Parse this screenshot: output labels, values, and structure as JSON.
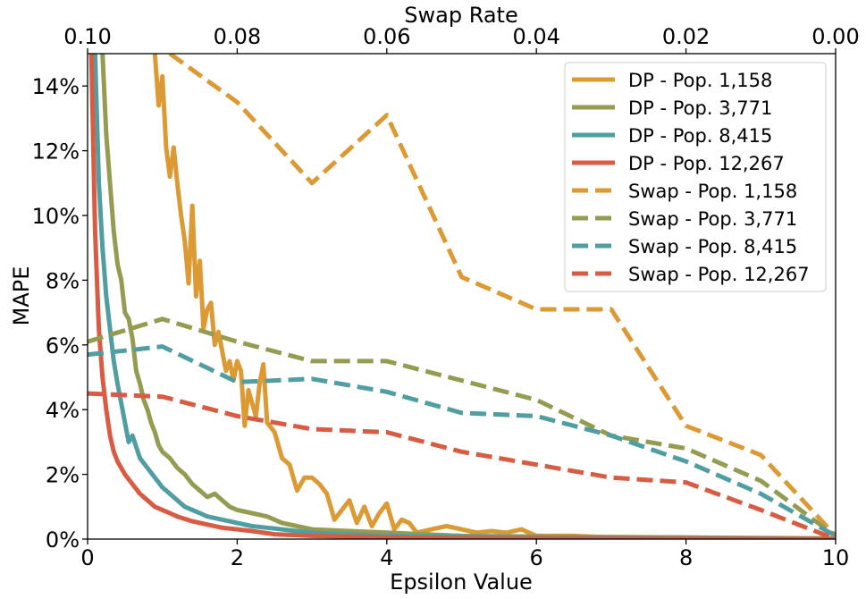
{
  "chart_data": {
    "type": "line",
    "xlabel": "Epsilon Value",
    "ylabel": "MAPE",
    "top_xlabel": "Swap Rate",
    "xlim": [
      0,
      10
    ],
    "ylim": [
      0,
      15
    ],
    "top_xlim": [
      0.1,
      0.0
    ],
    "x_ticks": [
      "0",
      "2",
      "4",
      "6",
      "8",
      "10"
    ],
    "top_x_ticks": [
      "0.10",
      "0.08",
      "0.06",
      "0.04",
      "0.02",
      "0.00"
    ],
    "y_ticks": [
      "0%",
      "2%",
      "4%",
      "6%",
      "8%",
      "10%",
      "12%",
      "14%"
    ],
    "legend_position": "top-right",
    "grid": false,
    "series": [
      {
        "name": "DP - Pop. 1,158",
        "style": "solid",
        "color": "#dc9a35",
        "x": [
          0.9,
          0.95,
          1.0,
          1.05,
          1.1,
          1.15,
          1.2,
          1.25,
          1.3,
          1.35,
          1.4,
          1.45,
          1.5,
          1.55,
          1.6,
          1.65,
          1.7,
          1.75,
          1.8,
          1.85,
          1.9,
          1.95,
          2.0,
          2.05,
          2.1,
          2.15,
          2.2,
          2.25,
          2.3,
          2.35,
          2.4,
          2.5,
          2.6,
          2.7,
          2.8,
          2.9,
          3.0,
          3.1,
          3.2,
          3.3,
          3.4,
          3.5,
          3.6,
          3.7,
          3.8,
          3.9,
          4.0,
          4.1,
          4.2,
          4.3,
          4.4,
          4.6,
          4.8,
          5.0,
          5.2,
          5.4,
          5.6,
          5.8,
          6.0,
          6.5,
          7.0,
          7.5,
          8.0,
          9.0,
          10.0
        ],
        "y": [
          15.0,
          13.4,
          14.3,
          12.1,
          11.2,
          12.1,
          11.0,
          10.0,
          9.2,
          7.9,
          10.3,
          7.5,
          8.6,
          6.5,
          7.1,
          7.3,
          6.0,
          6.4,
          5.8,
          5.2,
          5.5,
          4.9,
          5.5,
          5.2,
          3.5,
          4.6,
          4.2,
          3.8,
          4.8,
          5.4,
          3.6,
          3.3,
          2.5,
          2.3,
          1.5,
          1.9,
          1.9,
          1.7,
          1.4,
          0.6,
          0.9,
          1.2,
          0.5,
          1.0,
          0.4,
          0.8,
          1.1,
          0.3,
          0.6,
          0.5,
          0.2,
          0.3,
          0.4,
          0.3,
          0.2,
          0.25,
          0.2,
          0.3,
          0.1,
          0.1,
          0.05,
          0.05,
          0.05,
          0.02,
          0.0
        ]
      },
      {
        "name": "DP - Pop. 3,771",
        "style": "solid",
        "color": "#959c52",
        "x": [
          0.2,
          0.25,
          0.3,
          0.35,
          0.4,
          0.45,
          0.5,
          0.55,
          0.6,
          0.65,
          0.7,
          0.75,
          0.8,
          0.85,
          0.9,
          0.95,
          1.0,
          1.1,
          1.2,
          1.3,
          1.4,
          1.5,
          1.6,
          1.7,
          1.8,
          1.9,
          2.0,
          2.2,
          2.4,
          2.6,
          2.8,
          3.0,
          3.5,
          4.0,
          5.0,
          6.0,
          8.0,
          10.0
        ],
        "y": [
          15.0,
          12.5,
          11.0,
          9.5,
          8.5,
          8.0,
          7.0,
          6.8,
          6.2,
          5.2,
          4.8,
          4.3,
          4.0,
          3.6,
          3.3,
          2.9,
          2.7,
          2.5,
          2.2,
          2.0,
          1.7,
          1.5,
          1.3,
          1.4,
          1.2,
          1.0,
          0.9,
          0.8,
          0.7,
          0.5,
          0.4,
          0.3,
          0.25,
          0.2,
          0.1,
          0.08,
          0.05,
          0.02
        ]
      },
      {
        "name": "DP - Pop. 8,415",
        "style": "solid",
        "color": "#519ea2",
        "x": [
          0.1,
          0.15,
          0.2,
          0.25,
          0.3,
          0.35,
          0.4,
          0.45,
          0.5,
          0.55,
          0.6,
          0.7,
          0.8,
          0.9,
          1.0,
          1.1,
          1.2,
          1.3,
          1.4,
          1.5,
          1.6,
          1.8,
          2.0,
          2.2,
          2.4,
          2.6,
          2.8,
          3.0,
          3.5,
          4.0,
          5.0,
          6.0,
          8.0,
          10.0
        ],
        "y": [
          15.0,
          11.0,
          9.0,
          7.5,
          6.5,
          5.5,
          4.8,
          4.2,
          3.6,
          3.0,
          3.2,
          2.5,
          2.2,
          1.9,
          1.6,
          1.4,
          1.2,
          1.0,
          0.9,
          0.8,
          0.7,
          0.6,
          0.5,
          0.4,
          0.35,
          0.3,
          0.25,
          0.2,
          0.15,
          0.1,
          0.08,
          0.05,
          0.03,
          0.0
        ]
      },
      {
        "name": "DP - Pop. 12,267",
        "style": "solid",
        "color": "#d75c43",
        "x": [
          0.05,
          0.1,
          0.15,
          0.2,
          0.25,
          0.3,
          0.35,
          0.4,
          0.5,
          0.6,
          0.7,
          0.8,
          0.9,
          1.0,
          1.1,
          1.2,
          1.4,
          1.6,
          1.8,
          2.0,
          2.2,
          2.5,
          3.0,
          3.5,
          4.0,
          5.0,
          6.0,
          8.0,
          10.0
        ],
        "y": [
          15.0,
          9.5,
          6.5,
          5.0,
          4.0,
          3.2,
          2.7,
          2.4,
          2.0,
          1.7,
          1.4,
          1.2,
          1.0,
          0.9,
          0.8,
          0.7,
          0.55,
          0.45,
          0.35,
          0.3,
          0.25,
          0.15,
          0.1,
          0.08,
          0.05,
          0.03,
          0.02,
          0.01,
          0.0
        ]
      },
      {
        "name": "Swap - Pop. 1,158",
        "style": "dashed",
        "color": "#dc9a35",
        "x": [
          1.1,
          2.0,
          3.0,
          4.0,
          5.0,
          6.0,
          7.0,
          8.0,
          9.0,
          10.0
        ],
        "y": [
          15.0,
          13.5,
          11.0,
          13.1,
          8.1,
          7.1,
          7.1,
          3.5,
          2.6,
          0.1
        ]
      },
      {
        "name": "Swap - Pop. 3,771",
        "style": "dashed",
        "color": "#959c52",
        "x": [
          0,
          1,
          2,
          3,
          4,
          5,
          6,
          7,
          8,
          9,
          10
        ],
        "y": [
          6.1,
          6.8,
          6.1,
          5.5,
          5.5,
          4.9,
          4.3,
          3.2,
          2.8,
          1.8,
          0.1
        ]
      },
      {
        "name": "Swap - Pop. 8,415",
        "style": "dashed",
        "color": "#519ea2",
        "x": [
          0,
          1,
          2,
          3,
          4,
          5,
          6,
          7,
          8,
          9,
          10
        ],
        "y": [
          5.7,
          5.95,
          4.85,
          4.95,
          4.55,
          3.9,
          3.8,
          3.2,
          2.4,
          1.4,
          0.1
        ]
      },
      {
        "name": "Swap - Pop. 12,267",
        "style": "dashed",
        "color": "#d75c43",
        "x": [
          0,
          1,
          2,
          3,
          4,
          5,
          6,
          7,
          8,
          9,
          10
        ],
        "y": [
          4.5,
          4.4,
          3.8,
          3.4,
          3.3,
          2.7,
          2.3,
          1.9,
          1.75,
          0.9,
          0.0
        ]
      }
    ]
  }
}
